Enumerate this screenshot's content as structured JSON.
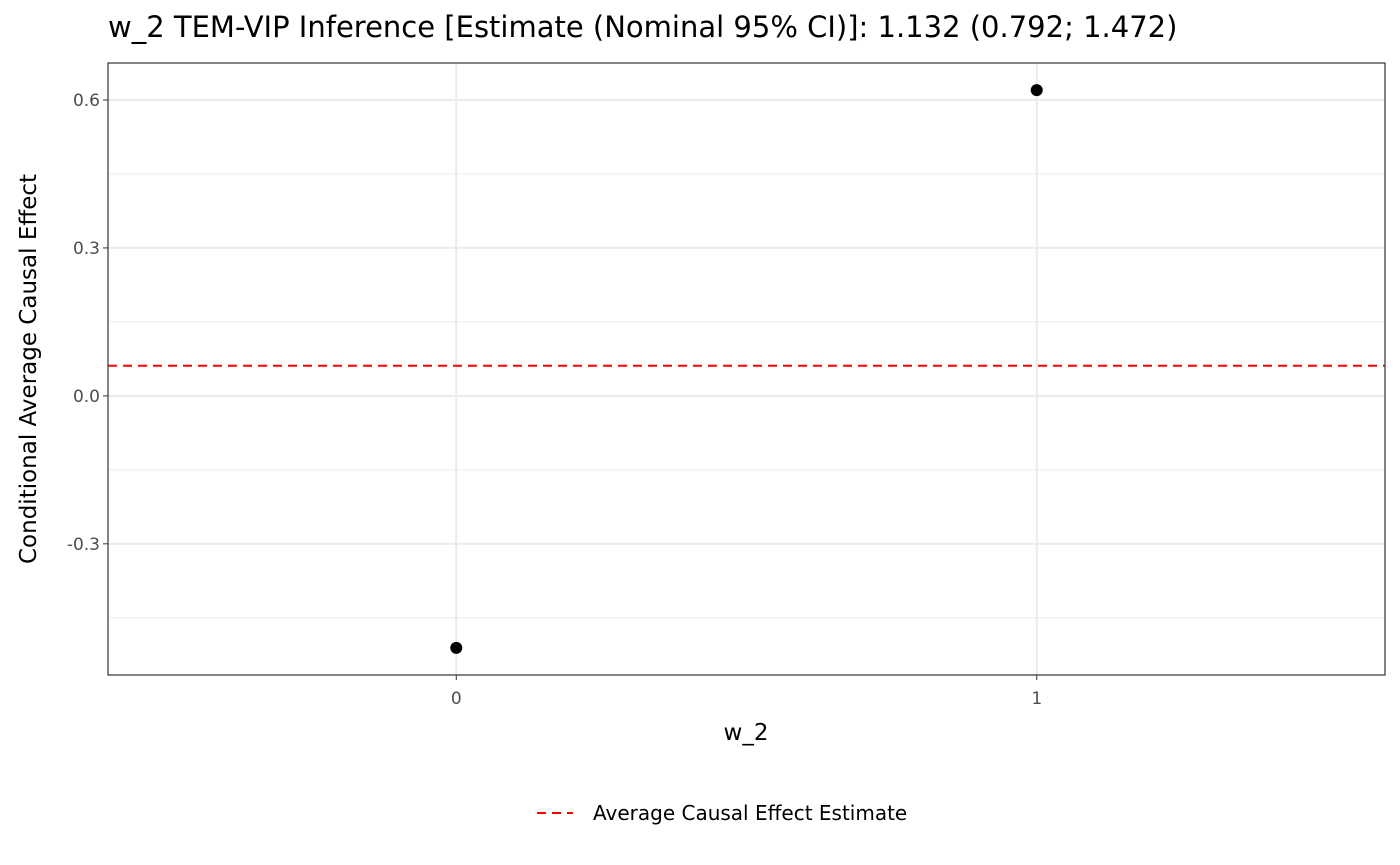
{
  "chart_data": {
    "type": "scatter",
    "title": "w_2 TEM-VIP Inference [Estimate (Nominal 95% CI)]: 1.132 (0.792; 1.472)",
    "xlabel": "w_2",
    "ylabel": "Conditional Average Causal Effect",
    "x_categories": [
      "0",
      "1"
    ],
    "points": [
      {
        "x": 0,
        "y": -0.511
      },
      {
        "x": 1,
        "y": 0.62
      }
    ],
    "xlim": [
      -0.6,
      1.6
    ],
    "ylim": [
      -0.566,
      0.675
    ],
    "yticks": [
      -0.3,
      0.0,
      0.3,
      0.6
    ],
    "ytick_labels": [
      "-0.3",
      "0.0",
      "0.3",
      "0.6"
    ],
    "xticks": [
      0,
      1
    ],
    "xtick_labels": [
      "0",
      "1"
    ],
    "hline": {
      "y": 0.061,
      "style": "dashed",
      "color": "#ff0000",
      "label": "Average Causal Effect Estimate"
    },
    "legend": {
      "position": "bottom",
      "entries": [
        "Average Causal Effect Estimate"
      ]
    },
    "grid": true,
    "point_color": "#000000"
  }
}
